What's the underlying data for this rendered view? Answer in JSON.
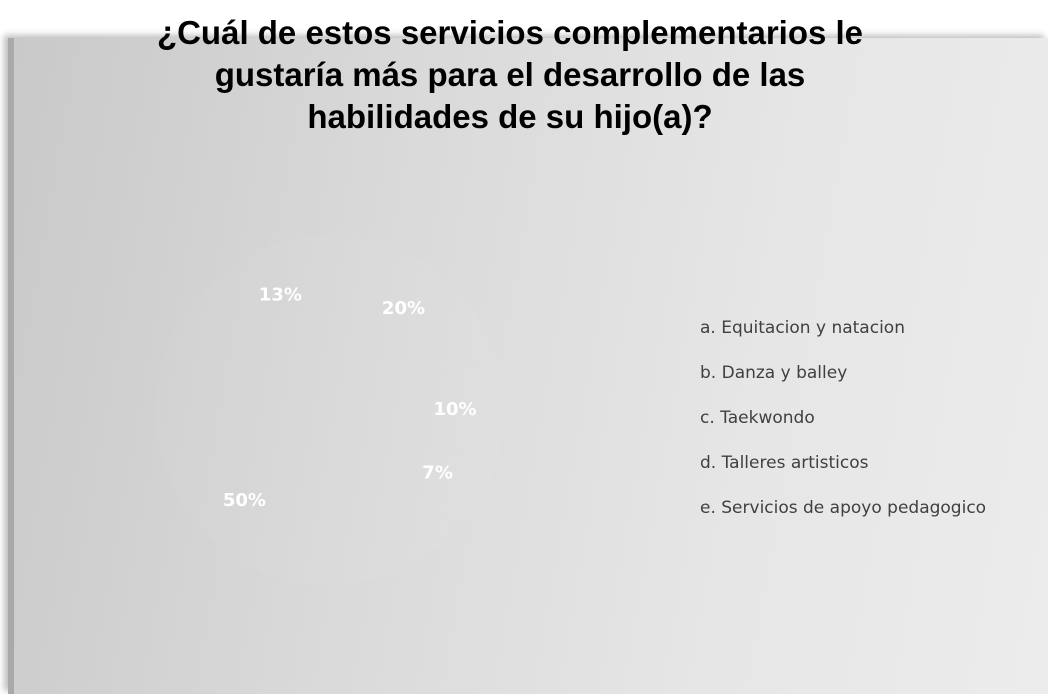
{
  "chart_data": {
    "type": "pie",
    "title": "¿Cuál de estos servicios complementarios le gustaría más para el desarrollo de las habilidades de su hijo(a)?",
    "categories": [
      "a. Equitacion y natacion",
      "b. Danza y balley",
      "c. Taekwondo",
      "d. Talleres artisticos",
      "e. Servicios de apoyo pedagogico"
    ],
    "values": [
      20,
      10,
      7,
      50,
      13
    ],
    "value_labels": [
      "20%",
      "10%",
      "7%",
      "50%",
      "13%"
    ],
    "legend": "right"
  }
}
